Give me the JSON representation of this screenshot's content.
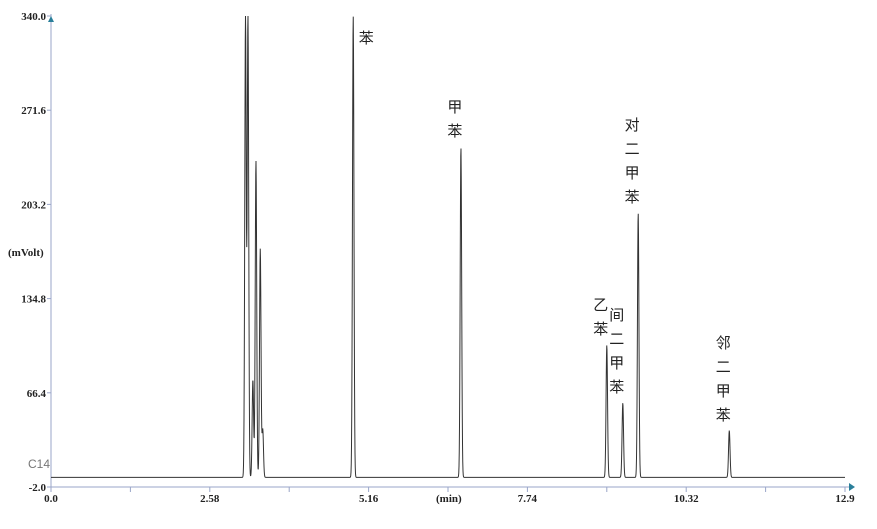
{
  "chart_data": {
    "type": "line",
    "title": "",
    "xlabel": "(min)",
    "ylabel": "(mVolt)",
    "channel_label": "C14",
    "xlim": [
      0.0,
      12.9
    ],
    "ylim": [
      -2.0,
      340.0
    ],
    "x_ticks": [
      "0.0",
      "2.58",
      "5.16",
      "7.74",
      "10.32",
      "12.9"
    ],
    "y_ticks": [
      "-2.0",
      "66.4",
      "134.8",
      "203.2",
      "271.6",
      "340.0"
    ],
    "grid": false,
    "baseline": 5,
    "axis_color": "#9aa6c8",
    "arrow_color": "#2a7f9a",
    "line_color": "#333333",
    "peaks": [
      {
        "time": 3.16,
        "height": 340,
        "label": ""
      },
      {
        "time": 3.2,
        "height": 340,
        "label": ""
      },
      {
        "time": 3.28,
        "height": 76,
        "label": ""
      },
      {
        "time": 3.33,
        "height": 235,
        "label": ""
      },
      {
        "time": 3.4,
        "height": 171,
        "label": ""
      },
      {
        "time": 3.44,
        "height": 40,
        "label": ""
      },
      {
        "time": 4.91,
        "height": 340,
        "label": "苯"
      },
      {
        "time": 6.66,
        "height": 245,
        "label": "甲苯"
      },
      {
        "time": 9.03,
        "height": 101,
        "label": "乙苯"
      },
      {
        "time": 9.29,
        "height": 59,
        "label": "间二甲苯"
      },
      {
        "time": 9.54,
        "height": 197,
        "label": "对二甲苯"
      },
      {
        "time": 11.02,
        "height": 39,
        "label": "邻二甲苯"
      }
    ]
  }
}
